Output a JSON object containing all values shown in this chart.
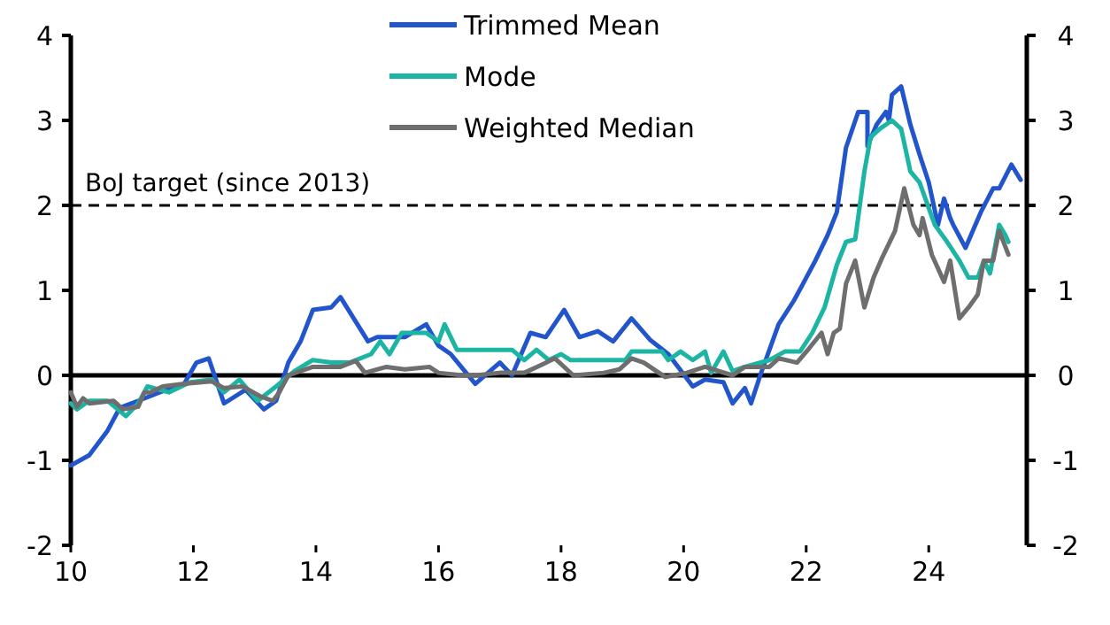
{
  "chart_data": {
    "type": "line",
    "xlim": [
      10,
      25.6
    ],
    "xticks": [
      10,
      12,
      14,
      16,
      18,
      20,
      22,
      24
    ],
    "ylim": [
      -2,
      4
    ],
    "yticks": [
      -2,
      -1,
      0,
      1,
      2,
      3,
      4
    ],
    "y2lim": [
      -2,
      4
    ],
    "y2ticks": [
      -2,
      -1,
      0,
      1,
      2,
      3,
      4
    ],
    "legend": "top",
    "grid": false,
    "line_style": "solid",
    "marker": "none",
    "ref_lines": [
      {
        "axis": "y",
        "value": 2,
        "label": "BoJ target (since 2013)",
        "line_style": "dashed",
        "color": "#000000"
      }
    ],
    "series": [
      {
        "name": "Trimmed Mean",
        "color": "#2255cc",
        "x": [
          10,
          10.3,
          10.6,
          10.8,
          11.1,
          11.45,
          11.85,
          12.05,
          12.25,
          12.5,
          12.85,
          13.15,
          13.35,
          13.55,
          13.75,
          13.95,
          14.25,
          14.4,
          14.85,
          15.0,
          15.45,
          15.8,
          16.0,
          16.2,
          16.6,
          17.0,
          17.2,
          17.5,
          17.75,
          18.05,
          18.3,
          18.6,
          18.85,
          19.15,
          19.45,
          19.75,
          20.15,
          20.35,
          20.65,
          20.8,
          21.0,
          21.1,
          21.25,
          21.55,
          21.8,
          21.95,
          22.15,
          22.35,
          22.5,
          22.65,
          22.85,
          23.0,
          23.0,
          23.15,
          23.3,
          23.35,
          23.4,
          23.55,
          23.7,
          23.85,
          24.0,
          24.15,
          24.25,
          24.35,
          24.4,
          24.6,
          24.85,
          25.05,
          25.15,
          25.35,
          25.5
        ],
        "values": [
          -1.06,
          -0.94,
          -0.65,
          -0.38,
          -0.3,
          -0.2,
          -0.1,
          0.15,
          0.2,
          -0.33,
          -0.17,
          -0.4,
          -0.3,
          0.15,
          0.4,
          0.77,
          0.8,
          0.92,
          0.4,
          0.45,
          0.45,
          0.6,
          0.35,
          0.25,
          -0.1,
          0.15,
          0.0,
          0.5,
          0.45,
          0.77,
          0.45,
          0.52,
          0.4,
          0.67,
          0.42,
          0.25,
          -0.13,
          -0.05,
          -0.08,
          -0.33,
          -0.15,
          -0.33,
          0,
          0.6,
          0.88,
          1.08,
          1.35,
          1.65,
          1.92,
          2.68,
          3.1,
          3.1,
          2.7,
          2.95,
          3.1,
          3.0,
          3.3,
          3.4,
          2.95,
          2.6,
          2.27,
          1.77,
          2.08,
          1.85,
          1.77,
          1.5,
          1.92,
          2.2,
          2.2,
          2.48,
          2.3
        ]
      },
      {
        "name": "Mode",
        "color": "#1cb5a3",
        "x": [
          10,
          10.1,
          10.3,
          10.6,
          10.9,
          11.1,
          11.25,
          11.6,
          11.95,
          12.3,
          12.5,
          12.75,
          13.05,
          13.35,
          13.65,
          13.95,
          14.25,
          14.55,
          14.9,
          15.05,
          15.2,
          15.4,
          15.8,
          16.0,
          16.1,
          16.3,
          17.2,
          17.4,
          17.6,
          17.8,
          18.0,
          18.15,
          18.3,
          19.05,
          19.15,
          19.65,
          19.75,
          19.95,
          20.15,
          20.35,
          20.45,
          20.65,
          20.8,
          21.0,
          21.4,
          21.65,
          21.9,
          22.1,
          22.3,
          22.5,
          22.65,
          22.8,
          22.95,
          23.05,
          23.2,
          23.4,
          23.55,
          23.7,
          23.85,
          24.1,
          24.3,
          24.5,
          24.65,
          24.8,
          24.9,
          25.0,
          25.15,
          25.25,
          25.3
        ],
        "values": [
          -0.33,
          -0.4,
          -0.3,
          -0.3,
          -0.48,
          -0.33,
          -0.13,
          -0.2,
          -0.08,
          -0.05,
          -0.2,
          -0.05,
          -0.3,
          -0.13,
          0.05,
          0.18,
          0.15,
          0.15,
          0.25,
          0.4,
          0.25,
          0.5,
          0.5,
          0.4,
          0.6,
          0.3,
          0.3,
          0.18,
          0.3,
          0.18,
          0.25,
          0.18,
          0.18,
          0.18,
          0.28,
          0.28,
          0.18,
          0.28,
          0.18,
          0.28,
          0.03,
          0.28,
          0.05,
          0.1,
          0.18,
          0.28,
          0.28,
          0.5,
          0.8,
          1.3,
          1.57,
          1.6,
          2.4,
          2.8,
          2.9,
          3.0,
          2.9,
          2.4,
          2.27,
          1.77,
          1.57,
          1.35,
          1.15,
          1.15,
          1.35,
          1.2,
          1.77,
          1.65,
          1.57
        ]
      },
      {
        "name": "Weighted Median",
        "color": "#6e6e6e",
        "x": [
          10,
          10.1,
          10.2,
          10.3,
          10.7,
          10.85,
          11.1,
          11.2,
          11.3,
          11.5,
          11.85,
          12.3,
          12.5,
          12.8,
          13.1,
          13.3,
          13.4,
          13.55,
          13.95,
          14.25,
          14.4,
          14.65,
          14.8,
          15.15,
          15.45,
          15.85,
          16.0,
          16.4,
          16.6,
          17.0,
          17.4,
          17.7,
          17.9,
          18.2,
          18.7,
          18.95,
          19.15,
          19.35,
          19.7,
          20.05,
          20.35,
          20.8,
          21.0,
          21.4,
          21.55,
          21.85,
          22.05,
          22.25,
          22.35,
          22.45,
          22.55,
          22.65,
          22.8,
          22.95,
          23.1,
          23.25,
          23.45,
          23.6,
          23.75,
          23.85,
          23.9,
          24.05,
          24.25,
          24.35,
          24.5,
          24.65,
          24.8,
          24.9,
          25.05,
          25.15,
          25.3
        ],
        "values": [
          -0.2,
          -0.37,
          -0.27,
          -0.33,
          -0.3,
          -0.4,
          -0.37,
          -0.2,
          -0.2,
          -0.13,
          -0.1,
          -0.07,
          -0.15,
          -0.13,
          -0.25,
          -0.3,
          -0.2,
          0.0,
          0.1,
          0.1,
          0.1,
          0.17,
          0.03,
          0.1,
          0.07,
          0.1,
          0.03,
          0.0,
          0.0,
          0.03,
          0.03,
          0.13,
          0.2,
          0.0,
          0.03,
          0.07,
          0.2,
          0.15,
          -0.02,
          0.03,
          0.1,
          0.0,
          0.1,
          0.1,
          0.2,
          0.15,
          0.32,
          0.5,
          0.25,
          0.5,
          0.55,
          1.08,
          1.35,
          0.8,
          1.15,
          1.4,
          1.7,
          2.2,
          1.77,
          1.65,
          1.85,
          1.42,
          1.1,
          1.35,
          0.67,
          0.8,
          0.95,
          1.35,
          1.35,
          1.7,
          1.42
        ]
      }
    ]
  }
}
